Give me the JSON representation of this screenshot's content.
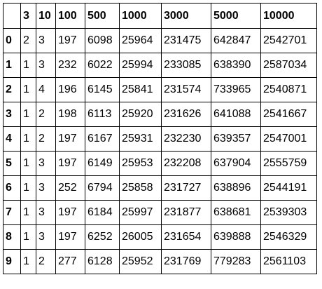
{
  "table": {
    "corner": "",
    "columns": [
      "3",
      "10",
      "100",
      "500",
      "1000",
      "3000",
      "5000",
      "10000"
    ],
    "rows": [
      {
        "index": "0",
        "cells": [
          "2",
          "3",
          "197",
          "6098",
          "25964",
          "231475",
          "642847",
          "2542701"
        ]
      },
      {
        "index": "1",
        "cells": [
          "1",
          "3",
          "232",
          "6022",
          "25994",
          "233085",
          "638390",
          "2587034"
        ]
      },
      {
        "index": "2",
        "cells": [
          "1",
          "4",
          "196",
          "6145",
          "25841",
          "231574",
          "733965",
          "2540871"
        ]
      },
      {
        "index": "3",
        "cells": [
          "1",
          "2",
          "198",
          "6113",
          "25920",
          "231626",
          "641088",
          "2541667"
        ]
      },
      {
        "index": "4",
        "cells": [
          "1",
          "2",
          "197",
          "6167",
          "25931",
          "232230",
          "639357",
          "2547001"
        ]
      },
      {
        "index": "5",
        "cells": [
          "1",
          "3",
          "197",
          "6149",
          "25953",
          "232208",
          "637904",
          "2555759"
        ]
      },
      {
        "index": "6",
        "cells": [
          "1",
          "3",
          "252",
          "6794",
          "25858",
          "231727",
          "638896",
          "2544191"
        ]
      },
      {
        "index": "7",
        "cells": [
          "1",
          "3",
          "197",
          "6184",
          "25997",
          "231877",
          "638681",
          "2539303"
        ]
      },
      {
        "index": "8",
        "cells": [
          "1",
          "3",
          "197",
          "6252",
          "26005",
          "231654",
          "639888",
          "2546329"
        ]
      },
      {
        "index": "9",
        "cells": [
          "1",
          "2",
          "277",
          "6128",
          "25952",
          "231769",
          "779283",
          "2561103"
        ]
      }
    ]
  }
}
